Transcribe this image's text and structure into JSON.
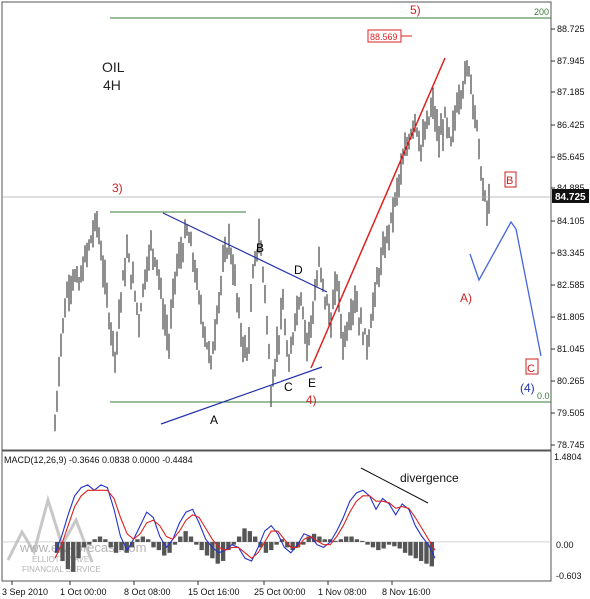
{
  "chart_data": {
    "type": "line",
    "instrument": "OIL",
    "timeframe": "4H",
    "price_axis": {
      "ylim": [
        78.0,
        89.6
      ],
      "ticks": [
        "88.725",
        "87.945",
        "87.185",
        "86.425",
        "85.645",
        "84.885",
        "84.105",
        "83.345",
        "82.585",
        "81.805",
        "81.045",
        "80.265",
        "79.505",
        "78.745"
      ],
      "current_price": "84.725"
    },
    "time_axis": {
      "labels": [
        "3 Sep 2010",
        "1 Oct 00:00",
        "8 Oct 08:00",
        "15 Oct 16:00",
        "25 Oct 00:00",
        "1 Nov 08:00",
        "8 Nov 16:00"
      ]
    },
    "series": [
      {
        "values": [
          [
            0,
            78.6
          ],
          [
            6,
            81.0
          ],
          [
            12,
            82.3
          ],
          [
            18,
            82.8
          ],
          [
            24,
            82.5
          ],
          [
            30,
            83.2
          ],
          [
            36,
            83.8
          ],
          [
            42,
            84.3
          ],
          [
            48,
            83.0
          ],
          [
            54,
            81.7
          ],
          [
            60,
            80.6
          ],
          [
            66,
            82.2
          ],
          [
            72,
            83.4
          ],
          [
            78,
            82.6
          ],
          [
            84,
            81.6
          ],
          [
            90,
            82.8
          ],
          [
            96,
            83.6
          ],
          [
            102,
            83.2
          ],
          [
            108,
            81.8
          ],
          [
            114,
            80.9
          ],
          [
            120,
            82.8
          ],
          [
            126,
            83.4
          ],
          [
            132,
            84.0
          ],
          [
            138,
            83.3
          ],
          [
            144,
            82.1
          ],
          [
            150,
            81.2
          ],
          [
            156,
            80.3
          ],
          [
            162,
            81.8
          ],
          [
            168,
            83.0
          ],
          [
            174,
            83.8
          ],
          [
            180,
            82.6
          ],
          [
            186,
            81.2
          ],
          [
            192,
            80.5
          ],
          [
            198,
            82.7
          ],
          [
            204,
            83.9
          ],
          [
            210,
            82.4
          ],
          [
            216,
            79.6
          ],
          [
            222,
            80.8
          ],
          [
            228,
            81.9
          ],
          [
            234,
            80.1
          ],
          [
            240,
            81.7
          ],
          [
            246,
            82.3
          ],
          [
            252,
            80.9
          ],
          [
            258,
            81.8
          ],
          [
            264,
            83.1
          ],
          [
            270,
            82.2
          ],
          [
            276,
            81.5
          ],
          [
            282,
            82.7
          ],
          [
            288,
            80.9
          ],
          [
            294,
            81.6
          ],
          [
            300,
            82.2
          ],
          [
            306,
            81.4
          ],
          [
            312,
            80.9
          ],
          [
            318,
            81.9
          ],
          [
            324,
            82.9
          ],
          [
            330,
            83.6
          ],
          [
            336,
            84.3
          ],
          [
            342,
            85.1
          ],
          [
            348,
            85.9
          ],
          [
            354,
            86.6
          ],
          [
            360,
            87.2
          ],
          [
            366,
            86.3
          ],
          [
            372,
            86.9
          ],
          [
            378,
            87.5
          ],
          [
            384,
            86.5
          ],
          [
            390,
            87.1
          ],
          [
            396,
            86.4
          ],
          [
            402,
            87.6
          ],
          [
            408,
            88.1
          ],
          [
            414,
            88.6
          ],
          [
            418,
            87.8
          ],
          [
            424,
            86.3
          ],
          [
            428,
            85.1
          ],
          [
            432,
            84.6
          ],
          [
            436,
            85.0
          ]
        ]
      }
    ],
    "levels": [
      {
        "label": "200",
        "y": 88.95,
        "color": "#3a7d3a"
      },
      {
        "label": "0.0",
        "y": 79.75,
        "color": "#3a7d3a"
      }
    ],
    "high_label": "88.569",
    "wave_labels": [
      {
        "text": "5)",
        "color": "#cc2222"
      },
      {
        "text": "3)",
        "color": "#cc2222"
      },
      {
        "text": "4)",
        "color": "#cc2222"
      },
      {
        "text": "A)",
        "color": "#cc2222"
      },
      {
        "text": "B",
        "color": "#cc2222",
        "boxed": true
      },
      {
        "text": "C",
        "color": "#cc2222",
        "boxed": true
      },
      {
        "text": "(4)",
        "color": "#2233aa"
      },
      {
        "text": "A",
        "color": "#000000"
      },
      {
        "text": "B",
        "color": "#000000"
      },
      {
        "text": "C",
        "color": "#000000"
      },
      {
        "text": "D",
        "color": "#000000"
      },
      {
        "text": "E",
        "color": "#000000"
      }
    ],
    "indicator": {
      "name": "MACD(12,26,9) -0.3646 0.0838 0.0000 -0.4484",
      "ticks": [
        "1.4804",
        "0.00",
        "-0.603"
      ],
      "ylim": [
        -0.7,
        1.6
      ],
      "annotation": "divergence",
      "histogram": [
        -0.2,
        -0.35,
        -0.5,
        -0.55,
        -0.3,
        -0.1,
        -0.05,
        0.05,
        0.1,
        0.05,
        -0.1,
        -0.2,
        -0.15,
        -0.2,
        -0.1,
        0.05,
        0.1,
        0.05,
        -0.1,
        -0.15,
        -0.25,
        -0.2,
        -0.05,
        0.1,
        0.2,
        0.1,
        -0.05,
        -0.15,
        -0.25,
        -0.3,
        -0.4,
        -0.35,
        -0.15,
        -0.05,
        0.1,
        0.25,
        0.2,
        0.1,
        -0.1,
        -0.2,
        -0.15,
        -0.05,
        0.05,
        -0.1,
        -0.15,
        -0.1,
        -0.05,
        0.1,
        0.15,
        0.1,
        0.05,
        0.05,
        0.02,
        0.05,
        0.1,
        0.1,
        0.05,
        0.02,
        -0.05,
        -0.1,
        -0.15,
        -0.12,
        -0.05,
        -0.08,
        -0.12,
        -0.2,
        -0.25,
        -0.3,
        -0.35,
        -0.4,
        -0.45
      ],
      "macd": [
        -0.2,
        0.1,
        0.5,
        0.85,
        1.0,
        1.05,
        0.95,
        1.05,
        1.0,
        0.6,
        0.1,
        -0.15,
        0.05,
        0.3,
        0.55,
        0.45,
        0.1,
        -0.1,
        0.05,
        0.35,
        0.55,
        0.6,
        0.35,
        0.05,
        -0.1,
        -0.2,
        -0.15,
        -0.05,
        -0.1,
        -0.3,
        -0.35,
        -0.1,
        0.2,
        0.3,
        0.15,
        -0.1,
        -0.2,
        -0.05,
        0.15,
        0.1,
        -0.05,
        -0.1,
        0.0,
        0.2,
        0.45,
        0.75,
        0.9,
        0.95,
        0.85,
        0.6,
        0.8,
        0.7,
        0.5,
        0.7,
        0.6,
        0.3,
        0.1,
        -0.05,
        -0.3
      ],
      "signal": [
        -0.3,
        -0.05,
        0.3,
        0.65,
        0.85,
        0.95,
        0.95,
        0.95,
        0.95,
        0.8,
        0.45,
        0.15,
        0.05,
        0.15,
        0.35,
        0.4,
        0.3,
        0.1,
        0.05,
        0.2,
        0.4,
        0.5,
        0.45,
        0.25,
        0.05,
        -0.1,
        -0.15,
        -0.1,
        -0.1,
        -0.2,
        -0.3,
        -0.2,
        0.0,
        0.2,
        0.2,
        0.05,
        -0.1,
        -0.1,
        0.05,
        0.1,
        0.02,
        -0.05,
        -0.05,
        0.1,
        0.3,
        0.55,
        0.75,
        0.85,
        0.85,
        0.75,
        0.75,
        0.72,
        0.62,
        0.65,
        0.62,
        0.45,
        0.25,
        0.05,
        -0.15
      ]
    },
    "watermark": [
      "www.ew-forecast.com",
      "ELLIOTT WAVE",
      "FINANCIAL SERVICE"
    ]
  }
}
